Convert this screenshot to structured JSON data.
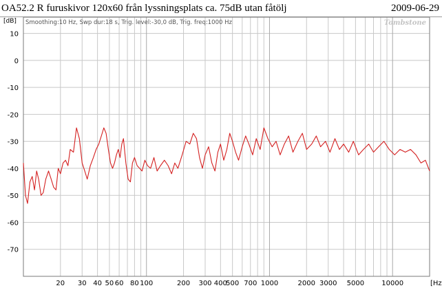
{
  "header": {
    "title": "OA52.2 R  furuskivor 120x60 från lyssningsplats ca. 75dB utan fåtölj",
    "date": "2009-06-29"
  },
  "chart_data": {
    "type": "line",
    "title": "OA52.2 R  furuskivor 120x60 från lyssningsplats ca. 75dB utan fåtölj",
    "ylabel": "[dB]",
    "xlabel": "[Hz]",
    "x_scale": "log",
    "xlim": [
      10,
      20000
    ],
    "ylim": [
      -80,
      16
    ],
    "grid": true,
    "settings_text": "Smoothing:10 Hz, Swp dur:18 s, Trig. level:-30,0 dB, Trig. freq:1000 Hz",
    "brand": "Tombstone",
    "y_ticks": [
      10,
      0,
      -10,
      -20,
      -30,
      -40,
      -50,
      -60,
      -70
    ],
    "x_tick_labels": [
      {
        "v": 20,
        "label": "20"
      },
      {
        "v": 30,
        "label": "30"
      },
      {
        "v": 40,
        "label": "40"
      },
      {
        "v": 50,
        "label": "50"
      },
      {
        "v": 60,
        "label": "60"
      },
      {
        "v": 80,
        "label": "80"
      },
      {
        "v": 100,
        "label": "100"
      },
      {
        "v": 200,
        "label": "200"
      },
      {
        "v": 300,
        "label": "300"
      },
      {
        "v": 400,
        "label": "400"
      },
      {
        "v": 500,
        "label": "500"
      },
      {
        "v": 700,
        "label": "700"
      },
      {
        "v": 1000,
        "label": "1000"
      },
      {
        "v": 2000,
        "label": "2000"
      },
      {
        "v": 3000,
        "label": "3000"
      },
      {
        "v": 5000,
        "label": "5000"
      },
      {
        "v": 10000,
        "label": "10000"
      }
    ],
    "series": [
      {
        "color": "#d42020",
        "x": [
          10,
          10.4,
          10.8,
          11.3,
          11.8,
          12.3,
          12.8,
          13.3,
          13.9,
          14.5,
          15.2,
          16,
          16.8,
          17.6,
          18.4,
          19.2,
          20,
          21,
          22,
          23,
          24,
          25.5,
          27,
          28.5,
          30,
          31.5,
          33,
          35,
          37,
          39,
          41,
          43,
          45,
          47,
          49,
          51,
          53,
          55,
          57,
          59,
          61,
          63,
          65,
          68,
          71,
          74,
          77,
          80,
          84,
          88,
          92,
          97,
          102,
          108,
          115,
          122,
          130,
          140,
          150,
          160,
          170,
          180,
          195,
          210,
          225,
          240,
          255,
          270,
          285,
          300,
          320,
          340,
          360,
          380,
          400,
          425,
          450,
          475,
          500,
          530,
          560,
          600,
          640,
          680,
          730,
          780,
          840,
          900,
          970,
          1050,
          1130,
          1220,
          1320,
          1430,
          1550,
          1700,
          1850,
          2000,
          2200,
          2400,
          2600,
          2850,
          3100,
          3400,
          3700,
          4000,
          4400,
          4800,
          5300,
          5800,
          6400,
          7000,
          7700,
          8500,
          9400,
          10400,
          11500,
          12700,
          14000,
          15500,
          17000,
          18500,
          20000
        ],
        "y": [
          -38,
          -50,
          -53,
          -45,
          -43,
          -48,
          -41,
          -44,
          -50,
          -49,
          -44,
          -41,
          -44,
          -47,
          -48,
          -40,
          -42,
          -38,
          -37,
          -39,
          -33,
          -34,
          -25,
          -29,
          -38,
          -41,
          -44,
          -39,
          -36,
          -33,
          -31,
          -28,
          -25,
          -27,
          -33,
          -38,
          -40,
          -38,
          -35,
          -33,
          -36,
          -31,
          -29,
          -38,
          -44,
          -45,
          -38,
          -36,
          -39,
          -40,
          -41,
          -37,
          -39,
          -40,
          -36,
          -41,
          -39,
          -37,
          -39,
          -42,
          -38,
          -40,
          -35,
          -30,
          -31,
          -27,
          -29,
          -36,
          -40,
          -35,
          -32,
          -38,
          -41,
          -34,
          -31,
          -37,
          -33,
          -27,
          -30,
          -34,
          -37,
          -32,
          -28,
          -31,
          -35,
          -29,
          -33,
          -25,
          -29,
          -32,
          -30,
          -35,
          -31,
          -28,
          -34,
          -30,
          -27,
          -33,
          -31,
          -28,
          -32,
          -30,
          -34,
          -29,
          -33,
          -31,
          -34,
          -30,
          -35,
          -33,
          -31,
          -34,
          -32,
          -30,
          -33,
          -35,
          -33,
          -34,
          -33,
          -35,
          -38,
          -37,
          -41
        ]
      }
    ]
  }
}
